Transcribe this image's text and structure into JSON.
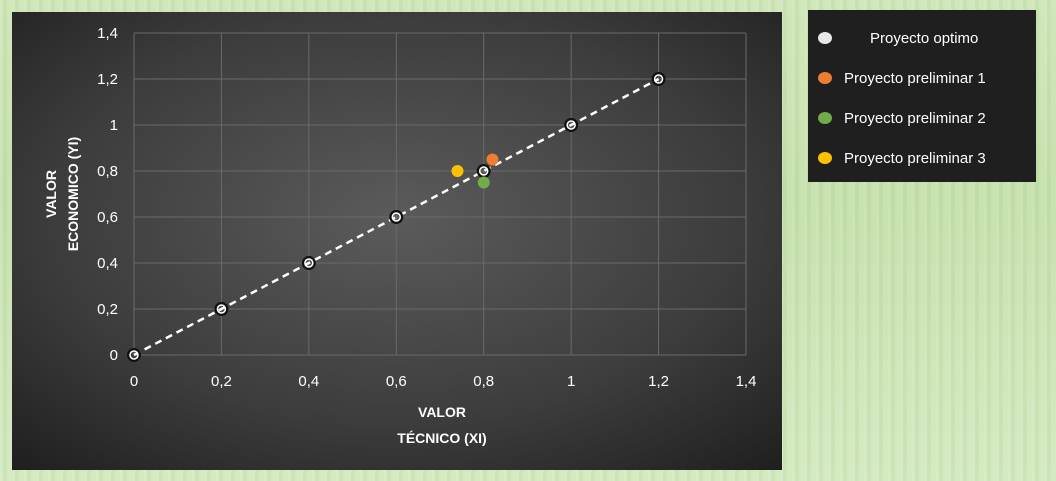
{
  "chart_data": {
    "type": "scatter",
    "title": "",
    "xlabel": [
      "VALOR",
      "TÉCNICO (XI)"
    ],
    "ylabel": [
      "VALOR",
      "ECONOMICO (YI)"
    ],
    "xlim": [
      0,
      1.4
    ],
    "ylim": [
      0,
      1.4
    ],
    "xticks": [
      "0",
      "0,2",
      "0,4",
      "0,6",
      "0,8",
      "1",
      "1,2",
      "1,4"
    ],
    "yticks": [
      "0",
      "0,2",
      "0,4",
      "0,6",
      "0,8",
      "1",
      "1,2",
      "1,4"
    ],
    "grid": true,
    "legend_position": "right",
    "series": [
      {
        "name": "Proyecto optimo",
        "color": "#ffffff",
        "connected": true,
        "dashed": true,
        "points": [
          [
            0,
            0
          ],
          [
            0.2,
            0.2
          ],
          [
            0.4,
            0.4
          ],
          [
            0.6,
            0.6
          ],
          [
            0.8,
            0.8
          ],
          [
            1,
            1
          ],
          [
            1.2,
            1.2
          ]
        ]
      },
      {
        "name": "Proyecto preliminar 1",
        "color": "#ed7d31",
        "points": [
          [
            0.82,
            0.85
          ]
        ]
      },
      {
        "name": "Proyecto preliminar 2",
        "color": "#70ad47",
        "points": [
          [
            0.8,
            0.75
          ]
        ]
      },
      {
        "name": "Proyecto preliminar 3",
        "color": "#ffc000",
        "points": [
          [
            0.74,
            0.8
          ]
        ]
      }
    ]
  },
  "legend": {
    "items": [
      {
        "label": "Proyecto optimo",
        "color": "#e8e8e8"
      },
      {
        "label": "Proyecto preliminar 1",
        "color": "#ed7d31"
      },
      {
        "label": "Proyecto preliminar 2",
        "color": "#70ad47"
      },
      {
        "label": "Proyecto preliminar 3",
        "color": "#ffc000"
      }
    ]
  }
}
